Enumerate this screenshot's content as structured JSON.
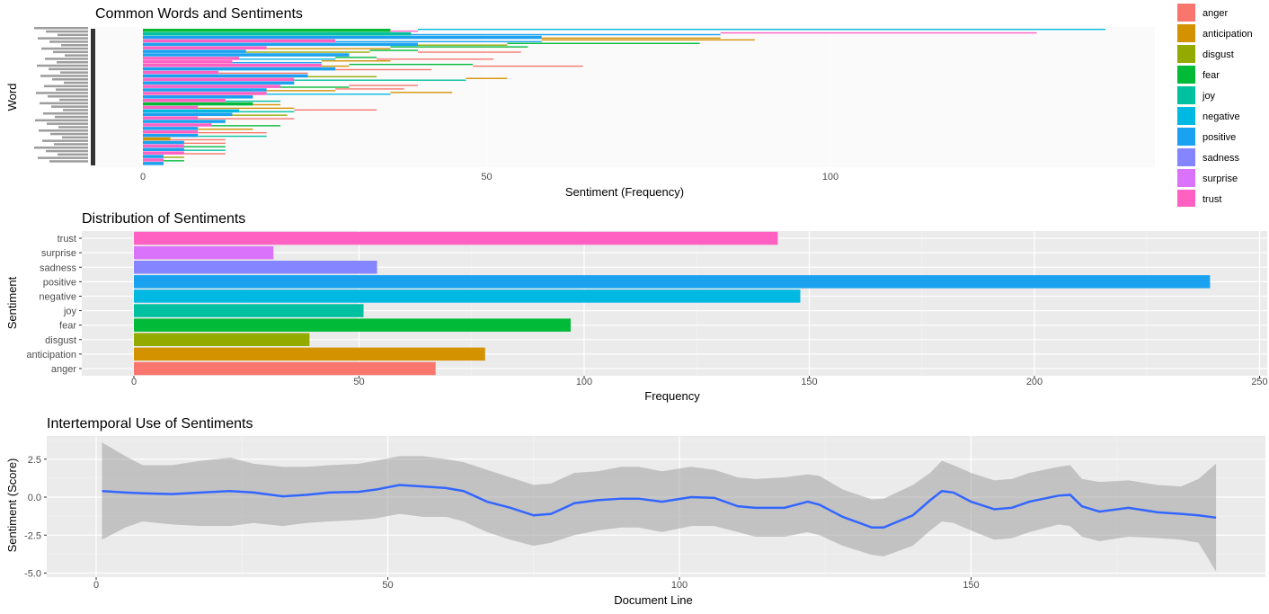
{
  "colors": {
    "anger": "#F8766D",
    "anticipation": "#D39200",
    "disgust": "#93AA00",
    "fear": "#00BA38",
    "joy": "#00C19F",
    "negative": "#00B9E3",
    "positive": "#1AA2F0",
    "sadness": "#8585FF",
    "surprise": "#DB72FB",
    "trust": "#FF61C3",
    "line": "#3366FF",
    "band": "#BDBDBD",
    "panel": "#EBEBEB"
  },
  "chart_data": [
    {
      "type": "bar",
      "title": "Common Words and Sentiments",
      "xlabel": "Sentiment (Frequency)",
      "ylabel": "Word",
      "xlim": [
        0,
        147
      ],
      "xticks": [
        "0",
        "50",
        "100"
      ],
      "xtick_values": [
        0,
        50,
        100
      ],
      "legend": {
        "position": "right",
        "entries": [
          "anger",
          "anticipation",
          "disgust",
          "fear",
          "joy",
          "negative",
          "positive",
          "sadness",
          "surprise",
          "trust"
        ]
      },
      "rows": [
        {
          "segments": [
            [
              "fear",
              36
            ],
            [
              "trust",
              4
            ],
            [
              "negative",
              100
            ]
          ]
        },
        {
          "segments": [
            [
              "joy",
              39
            ],
            [
              "positive",
              45
            ],
            [
              "trust",
              46
            ]
          ]
        },
        {
          "segments": [
            [
              "positive",
              58
            ],
            [
              "anticipation",
              26
            ]
          ]
        },
        {
          "segments": [
            [
              "trust",
              28
            ],
            [
              "positive",
              30
            ],
            [
              "anticipation",
              31
            ]
          ]
        },
        {
          "segments": [
            [
              "positive",
              40
            ],
            [
              "disgust",
              13
            ],
            [
              "fear",
              28
            ]
          ]
        },
        {
          "segments": [
            [
              "trust",
              18
            ],
            [
              "anticipation",
              18
            ],
            [
              "fear",
              20
            ]
          ]
        },
        {
          "segments": [
            [
              "positive",
              15
            ],
            [
              "disgust",
              18
            ],
            [
              "fear",
              7
            ],
            [
              "anger",
              15
            ]
          ]
        },
        {
          "segments": [
            [
              "positive",
              30
            ]
          ]
        },
        {
          "segments": [
            [
              "trust",
              14
            ],
            [
              "negative",
              14
            ],
            [
              "fear",
              6
            ],
            [
              "anger",
              17
            ]
          ]
        },
        {
          "segments": [
            [
              "trust",
              13
            ],
            [
              "positive",
              13
            ],
            [
              "anticipation",
              10
            ]
          ]
        },
        {
          "segments": [
            [
              "trust",
              26
            ],
            [
              "anticipation",
              4
            ],
            [
              "fear",
              18
            ],
            [
              "anger",
              16
            ]
          ]
        },
        {
          "segments": [
            [
              "positive",
              28
            ],
            [
              "anger",
              14
            ]
          ]
        },
        {
          "segments": [
            [
              "trust",
              11
            ],
            [
              "anger",
              13
            ]
          ]
        },
        {
          "segments": [
            [
              "positive",
              24
            ],
            [
              "disgust",
              10
            ]
          ]
        },
        {
          "segments": [
            [
              "trust",
              22
            ],
            [
              "joy",
              25
            ],
            [
              "anticipation",
              6
            ]
          ]
        },
        {
          "segments": [
            [
              "positive",
              22
            ]
          ]
        },
        {
          "segments": [
            [
              "trust",
              20
            ],
            [
              "fear",
              10
            ],
            [
              "anger",
              10
            ]
          ]
        },
        {
          "segments": [
            [
              "positive",
              18
            ],
            [
              "anticipation",
              10
            ],
            [
              "anger",
              10
            ]
          ]
        },
        {
          "segments": [
            [
              "trust",
              18
            ],
            [
              "negative",
              18
            ],
            [
              "anticipation",
              9
            ]
          ]
        },
        {
          "segments": [
            [
              "positive",
              16
            ]
          ]
        },
        {
          "segments": [
            [
              "trust",
              12
            ],
            [
              "joy",
              8
            ]
          ]
        },
        {
          "segments": [
            [
              "fear",
              16
            ],
            [
              "anticipation",
              4
            ]
          ]
        },
        {
          "segments": [
            [
              "trust",
              8
            ],
            [
              "anticipation",
              14
            ]
          ]
        },
        {
          "segments": [
            [
              "negative",
              14
            ],
            [
              "joy",
              8
            ],
            [
              "anger",
              12
            ]
          ]
        },
        {
          "segments": [
            [
              "positive",
              13
            ],
            [
              "disgust",
              8
            ]
          ]
        },
        {
          "segments": [
            [
              "trust",
              8
            ],
            [
              "anger",
              14
            ]
          ]
        },
        {
          "segments": [
            [
              "positive",
              12
            ]
          ]
        },
        {
          "segments": [
            [
              "trust",
              10
            ],
            [
              "fear",
              10
            ]
          ]
        },
        {
          "segments": [
            [
              "positive",
              8
            ],
            [
              "anticipation",
              8
            ]
          ]
        },
        {
          "segments": [
            [
              "trust",
              8
            ],
            [
              "anger",
              10
            ]
          ]
        },
        {
          "segments": [
            [
              "positive",
              8
            ],
            [
              "joy",
              10
            ]
          ]
        },
        {
          "segments": [
            [
              "anticipation",
              4
            ],
            [
              "anger",
              8
            ]
          ]
        },
        {
          "segments": [
            [
              "positive",
              6
            ],
            [
              "anger",
              6
            ]
          ]
        },
        {
          "segments": [
            [
              "trust",
              6
            ],
            [
              "fear",
              6
            ]
          ]
        },
        {
          "segments": [
            [
              "positive",
              6
            ],
            [
              "joy",
              6
            ]
          ]
        },
        {
          "segments": [
            [
              "trust",
              6
            ],
            [
              "anger",
              6
            ]
          ]
        },
        {
          "segments": [
            [
              "positive",
              3
            ],
            [
              "disgust",
              3
            ]
          ]
        },
        {
          "segments": [
            [
              "trust",
              3
            ],
            [
              "fear",
              3
            ]
          ]
        },
        {
          "segments": [
            [
              "positive",
              3
            ]
          ]
        }
      ]
    },
    {
      "type": "bar",
      "title": "Distribution of Sentiments",
      "xlabel": "Frequency",
      "ylabel": "Sentiment",
      "xlim": [
        -12,
        251
      ],
      "xticks": [
        "0",
        "50",
        "100",
        "150",
        "200",
        "250"
      ],
      "xtick_values": [
        0,
        50,
        100,
        150,
        200,
        250
      ],
      "categories": [
        "anger",
        "anticipation",
        "disgust",
        "fear",
        "joy",
        "negative",
        "positive",
        "sadness",
        "surprise",
        "trust"
      ],
      "values": [
        67,
        78,
        39,
        97,
        51,
        148,
        239,
        54,
        31,
        143
      ]
    },
    {
      "type": "line",
      "title": "Intertemporal Use of Sentiments",
      "xlabel": "Document Line",
      "ylabel": "Sentiment (Score)",
      "xlim": [
        -8,
        199
      ],
      "ylim": [
        -5.3,
        4.0
      ],
      "xticks": [
        "0",
        "50",
        "100",
        "150"
      ],
      "xtick_values": [
        0,
        50,
        100,
        150
      ],
      "yticks": [
        "-5.0",
        "-2.5",
        "0.0",
        "2.5"
      ],
      "ytick_values": [
        -5,
        -2.5,
        0,
        2.5
      ],
      "x": [
        1,
        5,
        8,
        13,
        18,
        23,
        27,
        32,
        36,
        40,
        45,
        48,
        52,
        56,
        60,
        63,
        67,
        71,
        75,
        78,
        82,
        86,
        90,
        93,
        97,
        102,
        106,
        110,
        113,
        118,
        122,
        124,
        128,
        133,
        135,
        140,
        143,
        145,
        147,
        150,
        154,
        157,
        160,
        165,
        167,
        169,
        172,
        177,
        182,
        186,
        189,
        192
      ],
      "y": [
        0.4,
        0.3,
        0.25,
        0.2,
        0.3,
        0.4,
        0.3,
        0.05,
        0.15,
        0.3,
        0.35,
        0.5,
        0.8,
        0.7,
        0.6,
        0.4,
        -0.3,
        -0.7,
        -1.2,
        -1.1,
        -0.4,
        -0.2,
        -0.1,
        -0.1,
        -0.3,
        0.0,
        -0.05,
        -0.6,
        -0.7,
        -0.7,
        -0.3,
        -0.5,
        -1.3,
        -2.0,
        -2.0,
        -1.2,
        -0.2,
        0.4,
        0.3,
        -0.3,
        -0.8,
        -0.7,
        -0.3,
        0.1,
        0.15,
        -0.6,
        -0.95,
        -0.7,
        -1.0,
        -1.1,
        -1.2,
        -1.35
      ],
      "lower": [
        -2.8,
        -2.0,
        -1.6,
        -1.8,
        -1.9,
        -1.9,
        -1.7,
        -1.9,
        -1.7,
        -1.6,
        -1.5,
        -1.4,
        -1.1,
        -1.3,
        -1.3,
        -1.6,
        -2.3,
        -2.8,
        -3.2,
        -3.0,
        -2.5,
        -2.2,
        -2.0,
        -2.0,
        -2.3,
        -1.9,
        -1.9,
        -2.3,
        -2.6,
        -2.6,
        -2.3,
        -2.5,
        -3.2,
        -3.8,
        -3.9,
        -3.2,
        -2.2,
        -1.6,
        -1.7,
        -2.2,
        -2.8,
        -2.7,
        -2.3,
        -1.8,
        -1.9,
        -2.6,
        -2.9,
        -2.6,
        -2.7,
        -2.8,
        -3.0,
        -4.9
      ],
      "upper": [
        3.6,
        2.7,
        2.1,
        2.1,
        2.4,
        2.6,
        2.2,
        2.0,
        2.0,
        2.1,
        2.2,
        2.4,
        2.7,
        2.7,
        2.5,
        2.3,
        1.8,
        1.3,
        0.8,
        0.9,
        1.6,
        1.7,
        2.0,
        2.0,
        1.7,
        2.0,
        1.8,
        1.3,
        1.2,
        1.3,
        1.5,
        1.4,
        0.5,
        -0.15,
        -0.1,
        0.8,
        1.6,
        2.4,
        2.1,
        1.6,
        1.1,
        1.2,
        1.6,
        2.0,
        2.1,
        1.2,
        1.0,
        1.1,
        0.8,
        0.7,
        1.2,
        2.2
      ]
    }
  ]
}
